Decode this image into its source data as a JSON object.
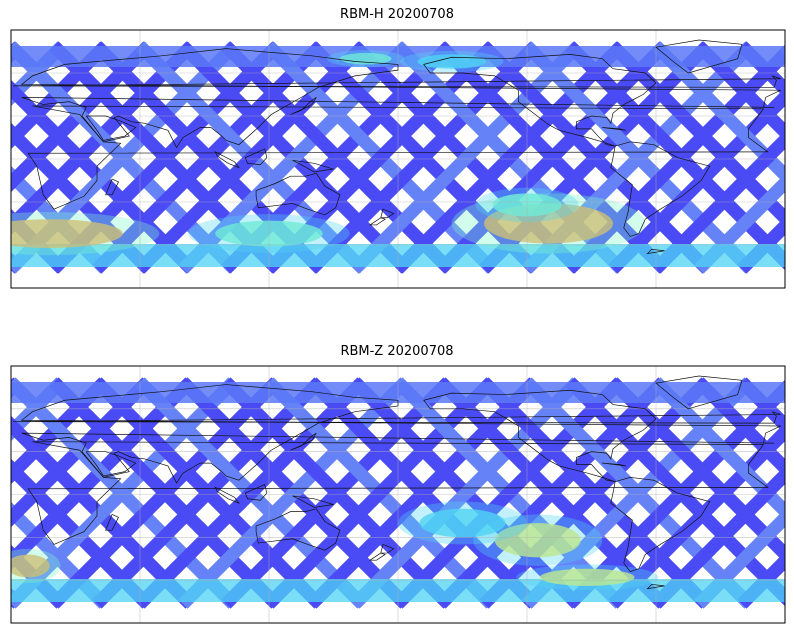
{
  "figure": {
    "panels": [
      {
        "title": "RBM-H 20200708",
        "hot_zones": [
          {
            "lonc": 18,
            "lat": -52,
            "rx": 34,
            "ry": 10,
            "level": 0.82
          },
          {
            "lonc": 120,
            "lat": -52,
            "rx": 25,
            "ry": 9,
            "level": 0.45
          },
          {
            "lonc": 250,
            "lat": -45,
            "rx": 30,
            "ry": 14,
            "level": 0.85
          },
          {
            "lonc": 240,
            "lat": -32,
            "rx": 16,
            "ry": 8,
            "level": 0.55
          },
          {
            "lonc": 165,
            "lat": 70,
            "rx": 12,
            "ry": 4,
            "level": 0.45
          },
          {
            "lonc": 205,
            "lat": 68,
            "rx": 16,
            "ry": 5,
            "level": 0.4
          }
        ]
      },
      {
        "title": "RBM-Z 20200708",
        "hot_zones": [
          {
            "lonc": 8,
            "lat": -50,
            "rx": 10,
            "ry": 8,
            "level": 0.8
          },
          {
            "lonc": 245,
            "lat": -32,
            "rx": 20,
            "ry": 12,
            "level": 0.6
          },
          {
            "lonc": 268,
            "lat": -58,
            "rx": 22,
            "ry": 6,
            "level": 0.7
          },
          {
            "lonc": 210,
            "lat": -20,
            "rx": 20,
            "ry": 10,
            "level": 0.3
          }
        ]
      }
    ],
    "colormap": [
      "#3b3cf5",
      "#5a78f7",
      "#4fd3f4",
      "#7ff7c8",
      "#f7f25a",
      "#f7a34b",
      "#f26a3f"
    ]
  }
}
